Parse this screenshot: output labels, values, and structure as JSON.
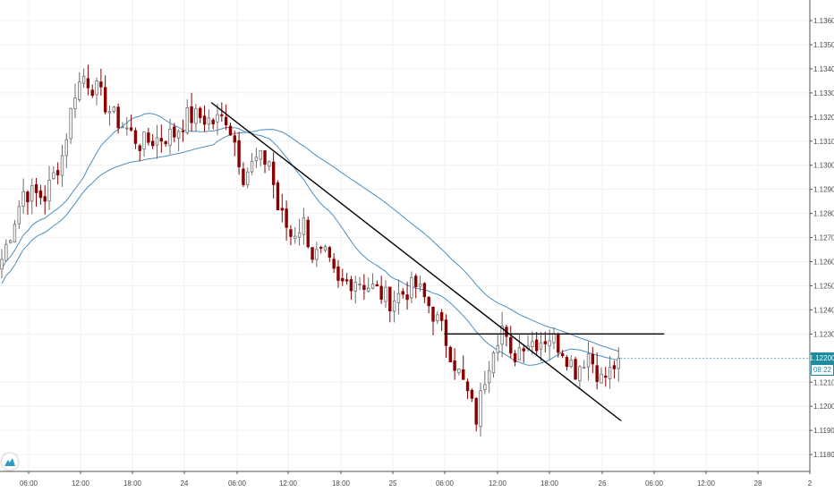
{
  "price_tags": {
    "last_price": "1.12200",
    "countdown": "08:22"
  },
  "colors": {
    "background": "#ffffff",
    "grid": "#eef1f5",
    "axis": "#555555",
    "candle_up": "#6e6e6e",
    "candle_down": "#8b0000",
    "ma_line": "#4a8fc1",
    "drawing_line": "#000000",
    "price_tag_bg": "#1f8c9e"
  },
  "icons": {
    "logo": "tradingview-logo-icon"
  },
  "chart_data": {
    "type": "candlestick",
    "symbol": "",
    "title": "",
    "xlabel": "",
    "ylabel": "",
    "x_ticks": [
      "06:00",
      "12:00",
      "18:00",
      "24",
      "06:00",
      "12:00",
      "18:00",
      "25",
      "06:00",
      "12:00",
      "18:00",
      "26",
      "06:00",
      "12:00",
      "28",
      "2"
    ],
    "y_ticks": [
      "1.13600",
      "1.13500",
      "1.13400",
      "1.13300",
      "1.13200",
      "1.13100",
      "1.13000",
      "1.12900",
      "1.12800",
      "1.12700",
      "1.12600",
      "1.12500",
      "1.12400",
      "1.12300",
      "1.12100",
      "1.12000",
      "1.11900",
      "1.11800"
    ],
    "ylim": [
      1.1176,
      1.1369
    ],
    "grid": true,
    "interval_hours": 1,
    "close_path": [
      [
        0,
        1.1261
      ],
      [
        5,
        1.1289
      ],
      [
        10,
        1.1287
      ],
      [
        14,
        1.1304
      ],
      [
        17,
        1.1331
      ],
      [
        19,
        1.1337
      ],
      [
        22,
        1.1331
      ],
      [
        26,
        1.132
      ],
      [
        29,
        1.1315
      ],
      [
        32,
        1.1309
      ],
      [
        36,
        1.1311
      ],
      [
        40,
        1.1313
      ],
      [
        43,
        1.132
      ],
      [
        46,
        1.132
      ],
      [
        49,
        1.1318
      ],
      [
        52,
        1.132
      ],
      [
        54,
        1.131
      ],
      [
        56,
        1.1296
      ],
      [
        59,
        1.1302
      ],
      [
        62,
        1.1302
      ],
      [
        64,
        1.1282
      ],
      [
        67,
        1.1271
      ],
      [
        70,
        1.1276
      ],
      [
        72,
        1.1263
      ],
      [
        75,
        1.1262
      ],
      [
        78,
        1.125
      ],
      [
        82,
        1.1253
      ],
      [
        86,
        1.1249
      ],
      [
        90,
        1.1244
      ],
      [
        93,
        1.1247
      ],
      [
        96,
        1.125
      ],
      [
        99,
        1.1242
      ],
      [
        102,
        1.1232
      ],
      [
        105,
        1.1218
      ],
      [
        108,
        1.1205
      ],
      [
        110,
        1.1195
      ],
      [
        112,
        1.1212
      ],
      [
        114,
        1.1226
      ],
      [
        116,
        1.1233
      ],
      [
        118,
        1.1219
      ],
      [
        121,
        1.1227
      ],
      [
        124,
        1.1227
      ],
      [
        127,
        1.1229
      ],
      [
        130,
        1.1224
      ],
      [
        133,
        1.1215
      ],
      [
        136,
        1.1222
      ],
      [
        139,
        1.1211
      ],
      [
        141,
        1.1214
      ],
      [
        143,
        1.122
      ]
    ],
    "moving_averages": [
      {
        "period": 20,
        "color": "#4a8fc1"
      },
      {
        "period": 50,
        "color": "#4a8fc1"
      }
    ],
    "trendlines": [
      {
        "from": [
          49,
          1.1326
        ],
        "to": [
          144,
          1.1194
        ]
      },
      {
        "from": [
          103,
          1.123
        ],
        "to": [
          154,
          1.123
        ]
      }
    ],
    "last_price": 1.122
  }
}
